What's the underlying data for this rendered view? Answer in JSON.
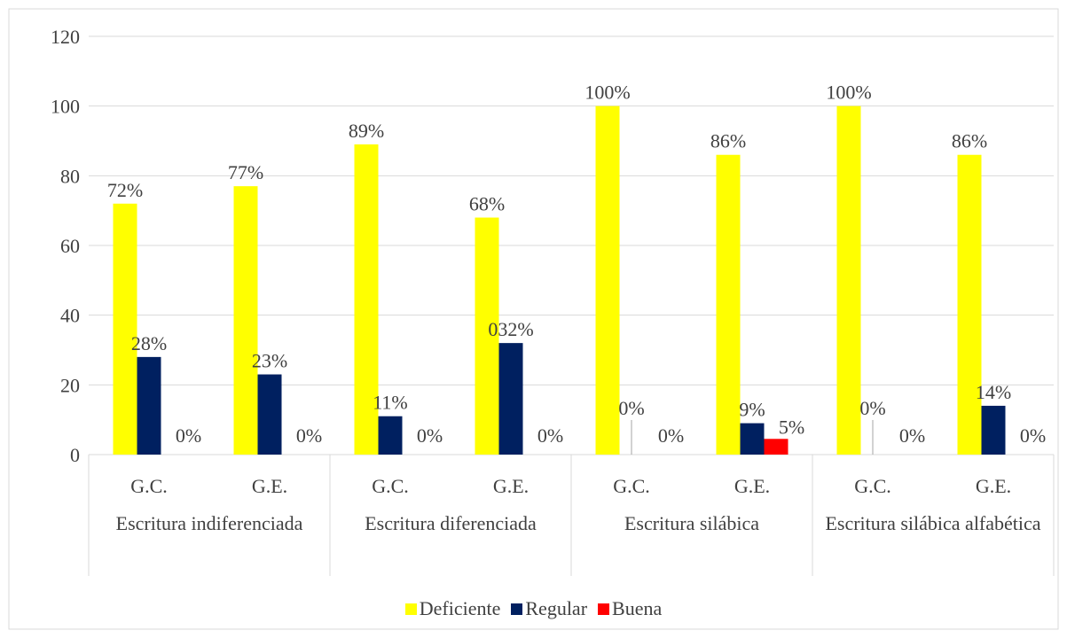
{
  "chart_data": {
    "type": "bar",
    "categories": [
      "G.C.",
      "G.E.",
      "G.C.",
      "G.E.",
      "G.C.",
      "G.E.",
      "G.C.",
      "G.E."
    ],
    "category_groups": [
      "Escritura indiferenciada",
      "Escritura diferenciada",
      "Escritura silábica",
      "Escritura silábica alfabética"
    ],
    "series": [
      {
        "name": "Deficiente",
        "color": "#ffff00",
        "values": [
          72,
          77,
          89,
          68,
          100,
          86,
          100,
          86
        ],
        "value_labels": [
          "72%",
          "77%",
          "89%",
          "68%",
          "100%",
          "86%",
          "100%",
          "86%"
        ]
      },
      {
        "name": "Regular",
        "color": "#002060",
        "values": [
          28,
          23,
          11,
          32,
          0,
          9,
          0,
          14
        ],
        "value_labels": [
          "28%",
          "23%",
          "11%",
          "032%",
          "0%",
          "9%",
          "0%",
          "14%"
        ]
      },
      {
        "name": "Buena",
        "color": "#ff0000",
        "values": [
          0,
          0,
          0,
          0,
          0,
          4.5,
          0,
          0
        ],
        "value_labels": [
          "0%",
          "0%",
          "0%",
          "0%",
          "0%",
          "5%",
          "0%",
          "0%"
        ]
      }
    ],
    "ylim": [
      0,
      120
    ],
    "yticks": [
      0,
      20,
      40,
      60,
      80,
      100,
      120
    ],
    "grid": true,
    "legend": "bottom"
  }
}
